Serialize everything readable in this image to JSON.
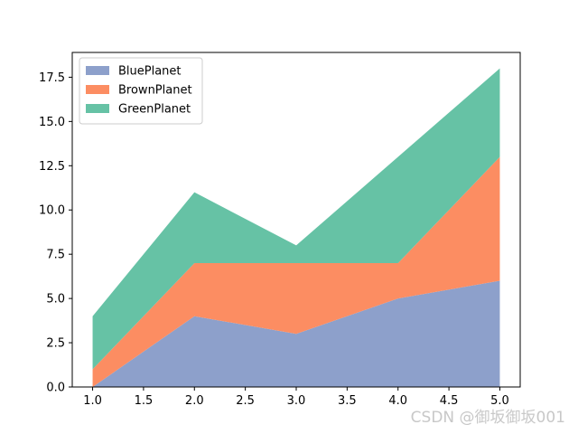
{
  "chart_data": {
    "type": "area",
    "stacked": true,
    "x": [
      1,
      2,
      3,
      4,
      5
    ],
    "series": [
      {
        "name": "BluePlanet",
        "values": [
          0,
          4,
          3,
          5,
          6
        ],
        "color": "#8da0cb"
      },
      {
        "name": "BrownPlanet",
        "values": [
          1,
          3,
          4,
          2,
          7
        ],
        "color": "#fc8d62"
      },
      {
        "name": "GreenPlanet",
        "values": [
          3,
          4,
          1,
          6,
          5
        ],
        "color": "#66c2a5"
      }
    ],
    "xlim": [
      0.8,
      5.2
    ],
    "ylim": [
      0,
      18.9
    ],
    "xticks": [
      "1.0",
      "1.5",
      "2.0",
      "2.5",
      "3.0",
      "3.5",
      "4.0",
      "4.5",
      "5.0"
    ],
    "yticks": [
      "0.0",
      "2.5",
      "5.0",
      "7.5",
      "10.0",
      "12.5",
      "15.0",
      "17.5"
    ],
    "title": "",
    "xlabel": "",
    "ylabel": "",
    "grid": false,
    "legend_position": "top-left"
  },
  "watermark": "CSDN @御坂御坂001"
}
